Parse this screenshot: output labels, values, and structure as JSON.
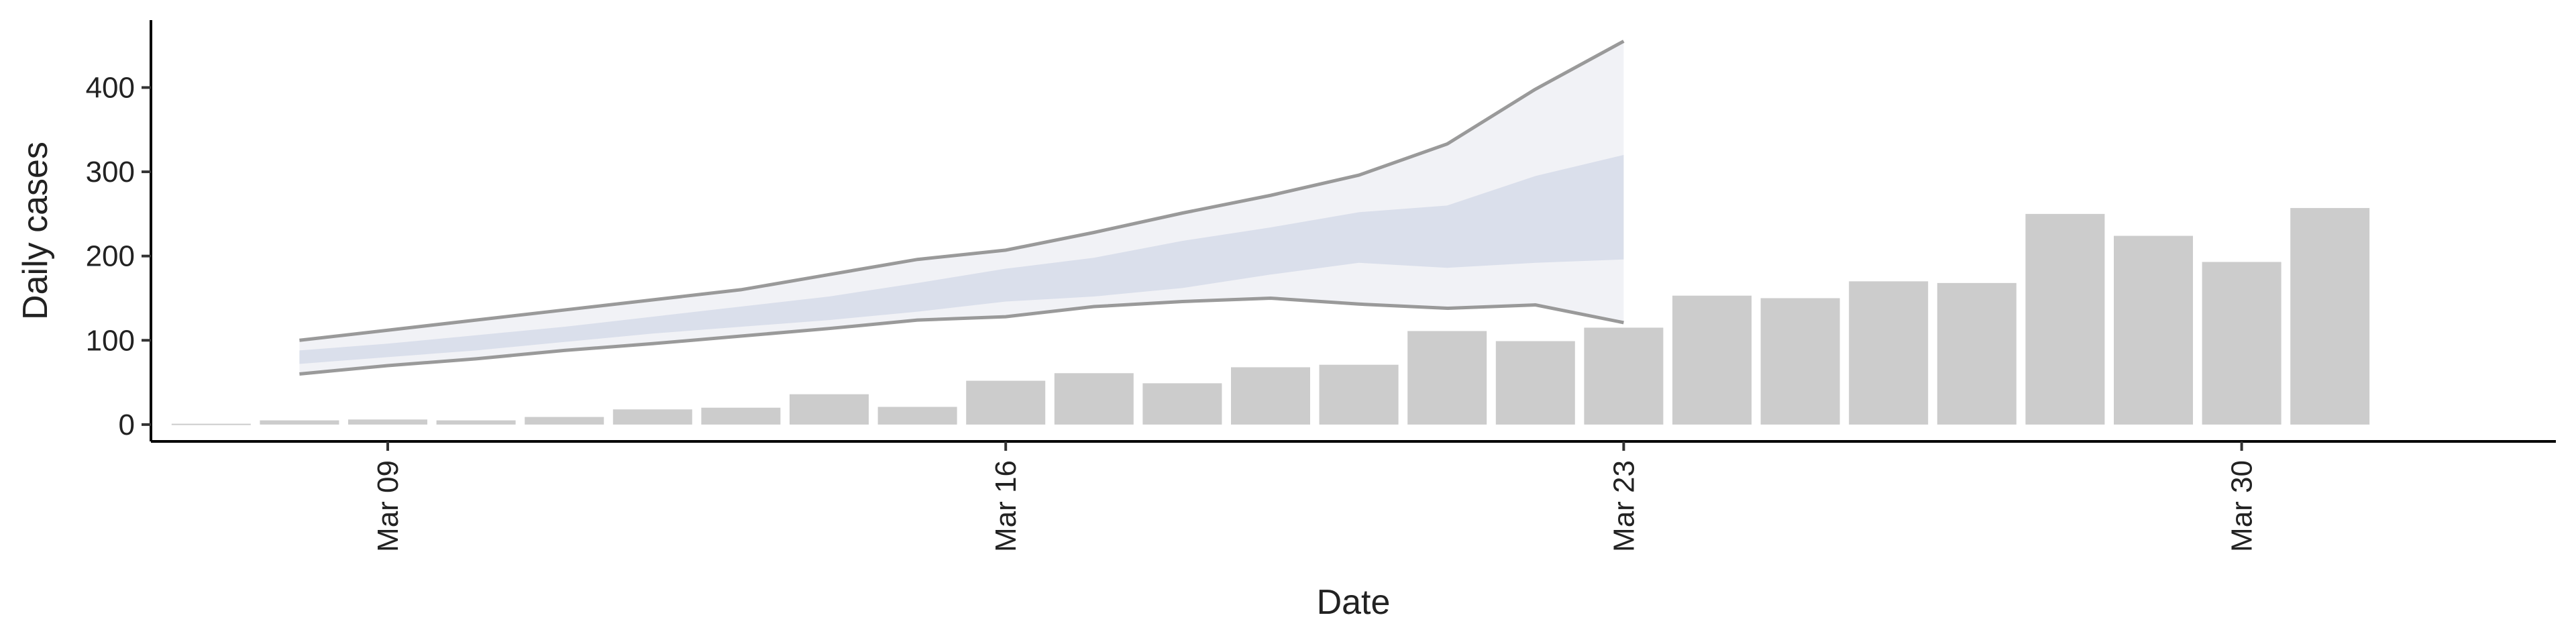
{
  "chart_data": {
    "type": "bar",
    "xlabel": "Date",
    "ylabel": "Daily cases",
    "ylim": [
      -20,
      480
    ],
    "grid": false,
    "legend": "none",
    "yticks": [
      0,
      100,
      200,
      300,
      400
    ],
    "xticks": [
      {
        "date": "2020-03-09",
        "label": "Mar 09"
      },
      {
        "date": "2020-03-16",
        "label": "Mar 16"
      },
      {
        "date": "2020-03-23",
        "label": "Mar 23"
      },
      {
        "date": "2020-03-30",
        "label": "Mar 30"
      }
    ],
    "bars": {
      "color": "#cccccc",
      "dates": [
        "2020-03-07",
        "2020-03-08",
        "2020-03-09",
        "2020-03-10",
        "2020-03-11",
        "2020-03-12",
        "2020-03-13",
        "2020-03-14",
        "2020-03-15",
        "2020-03-16",
        "2020-03-17",
        "2020-03-18",
        "2020-03-19",
        "2020-03-20",
        "2020-03-21",
        "2020-03-22",
        "2020-03-23",
        "2020-03-24",
        "2020-03-25",
        "2020-03-26",
        "2020-03-27",
        "2020-03-28",
        "2020-03-29",
        "2020-03-30",
        "2020-03-31",
        "2020-04-01"
      ],
      "values": [
        1,
        5,
        6,
        5,
        9,
        18,
        20,
        36,
        21,
        52,
        61,
        49,
        68,
        71,
        111,
        99,
        115,
        153,
        150,
        170,
        168,
        250,
        224,
        193,
        257,
        0
      ]
    },
    "forecast": {
      "dates": [
        "2020-03-08",
        "2020-03-09",
        "2020-03-10",
        "2020-03-11",
        "2020-03-12",
        "2020-03-13",
        "2020-03-14",
        "2020-03-15",
        "2020-03-16",
        "2020-03-17",
        "2020-03-18",
        "2020-03-19",
        "2020-03-20",
        "2020-03-21",
        "2020-03-22",
        "2020-03-23"
      ],
      "outer_upper": [
        100,
        112,
        124,
        136,
        148,
        160,
        178,
        196,
        207,
        228,
        251,
        272,
        296,
        333,
        398,
        455
      ],
      "outer_lower": [
        60,
        70,
        78,
        88,
        96,
        105,
        114,
        124,
        128,
        140,
        146,
        150,
        143,
        138,
        142,
        121
      ],
      "inner_upper": [
        88,
        96,
        106,
        116,
        128,
        140,
        152,
        168,
        185,
        198,
        218,
        234,
        252,
        260,
        295,
        320
      ],
      "inner_lower": [
        72,
        80,
        88,
        98,
        108,
        116,
        124,
        134,
        146,
        152,
        162,
        178,
        192,
        186,
        192,
        196
      ],
      "outer_color": "#eef0f5",
      "inner_color": "#d4d9e8",
      "outline_color": "#8f8f8f"
    }
  }
}
